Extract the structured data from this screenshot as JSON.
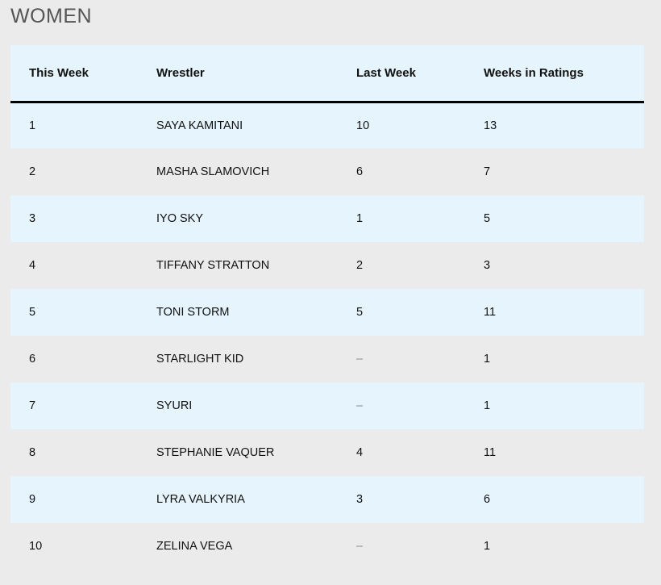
{
  "section": {
    "title": "WOMEN"
  },
  "table": {
    "headers": [
      "This Week",
      "Wrestler",
      "Last Week",
      "Weeks in Ratings"
    ],
    "rows": [
      {
        "this_week": "1",
        "wrestler": "SAYA KAMITANI",
        "last_week": "10",
        "weeks": "13"
      },
      {
        "this_week": "2",
        "wrestler": "MASHA SLAMOVICH",
        "last_week": "6",
        "weeks": "7"
      },
      {
        "this_week": "3",
        "wrestler": "IYO SKY",
        "last_week": "1",
        "weeks": "5"
      },
      {
        "this_week": "4",
        "wrestler": "TIFFANY STRATTON",
        "last_week": "2",
        "weeks": "3"
      },
      {
        "this_week": "5",
        "wrestler": "TONI STORM",
        "last_week": "5",
        "weeks": "11"
      },
      {
        "this_week": "6",
        "wrestler": "STARLIGHT KID",
        "last_week": "–",
        "weeks": "1"
      },
      {
        "this_week": "7",
        "wrestler": "SYURI",
        "last_week": "–",
        "weeks": "1"
      },
      {
        "this_week": "8",
        "wrestler": "STEPHANIE VAQUER",
        "last_week": "4",
        "weeks": "11"
      },
      {
        "this_week": "9",
        "wrestler": "LYRA VALKYRIA",
        "last_week": "3",
        "weeks": "6"
      },
      {
        "this_week": "10",
        "wrestler": "ZELINA VEGA",
        "last_week": "–",
        "weeks": "1"
      }
    ]
  },
  "colors": {
    "page_background": "#ebebeb",
    "row_highlight": "#e5f4fd",
    "header_rule": "#000000"
  }
}
